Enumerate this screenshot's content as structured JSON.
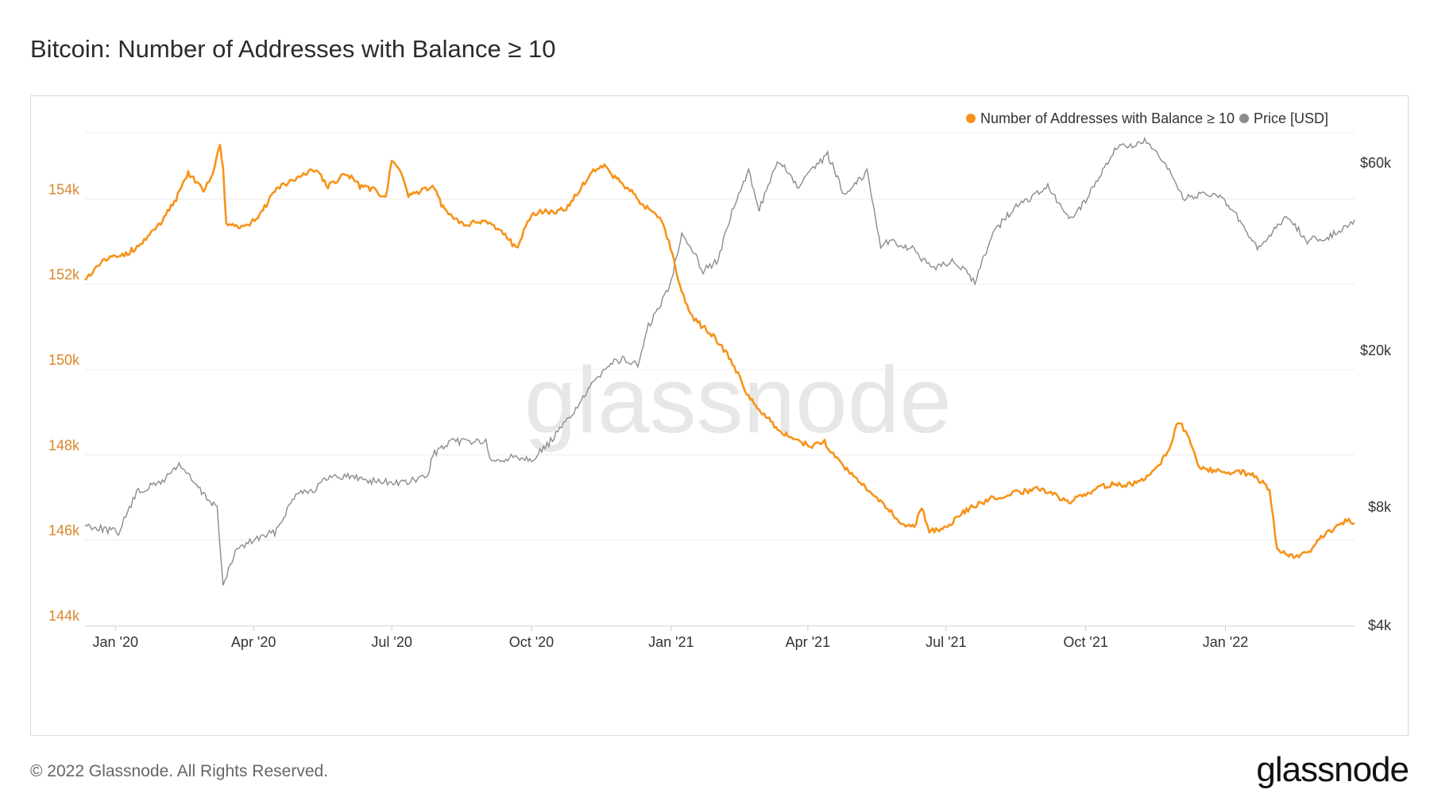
{
  "title": "Bitcoin: Number of Addresses with Balance ≥ 10",
  "footer": "© 2022 Glassnode. All Rights Reserved.",
  "brand": "glassnode",
  "watermark": "glassnode",
  "colors": {
    "addresses": "#f7931a",
    "price": "#8c8c8c",
    "grid": "#ececec",
    "left_tick": "#d9862b",
    "right_tick": "#333333"
  },
  "chart_data": {
    "type": "line",
    "title": "Bitcoin: Number of Addresses with Balance ≥ 10",
    "legend_placement": "top-right",
    "grid": true,
    "x_ticks": [
      "Jan '20",
      "Apr '20",
      "Jul '20",
      "Oct '20",
      "Jan '21",
      "Apr '21",
      "Jul '21",
      "Oct '21",
      "Jan '22"
    ],
    "x_tick_dates": [
      "2020-01-01",
      "2020-04-01",
      "2020-07-01",
      "2020-10-01",
      "2021-01-01",
      "2021-04-01",
      "2021-07-01",
      "2021-10-01",
      "2022-01-01"
    ],
    "x_range": [
      "2019-12-12",
      "2022-03-27"
    ],
    "y_left": {
      "ticks": [
        "144k",
        "146k",
        "148k",
        "150k",
        "152k",
        "154k"
      ],
      "tick_values": [
        144000,
        146000,
        148000,
        150000,
        152000,
        154000
      ],
      "range": [
        144000,
        156000
      ]
    },
    "y_right": {
      "scale": "log",
      "ticks": [
        "$4k",
        "$8k",
        "$20k",
        "$60k"
      ],
      "tick_values": [
        4000,
        8000,
        20000,
        60000
      ],
      "range": [
        4000,
        80000
      ]
    },
    "series": [
      {
        "name": "Number of Addresses with Balance ≥ 10",
        "axis": "left",
        "points": [
          [
            "2019-12-12",
            152100
          ],
          [
            "2019-12-25",
            152600
          ],
          [
            "2020-01-08",
            152700
          ],
          [
            "2020-01-20",
            153000
          ],
          [
            "2020-02-01",
            153500
          ],
          [
            "2020-02-10",
            154000
          ],
          [
            "2020-02-18",
            154600
          ],
          [
            "2020-02-28",
            154200
          ],
          [
            "2020-03-05",
            154600
          ],
          [
            "2020-03-10",
            155300
          ],
          [
            "2020-03-12",
            154700
          ],
          [
            "2020-03-14",
            153400
          ],
          [
            "2020-03-25",
            153300
          ],
          [
            "2020-04-05",
            153600
          ],
          [
            "2020-04-15",
            154200
          ],
          [
            "2020-04-25",
            154400
          ],
          [
            "2020-05-05",
            154600
          ],
          [
            "2020-05-12",
            154700
          ],
          [
            "2020-05-20",
            154300
          ],
          [
            "2020-06-01",
            154600
          ],
          [
            "2020-06-10",
            154300
          ],
          [
            "2020-06-20",
            154200
          ],
          [
            "2020-06-27",
            154000
          ],
          [
            "2020-07-01",
            154900
          ],
          [
            "2020-07-05",
            154800
          ],
          [
            "2020-07-12",
            154100
          ],
          [
            "2020-07-22",
            154200
          ],
          [
            "2020-07-28",
            154300
          ],
          [
            "2020-08-05",
            153700
          ],
          [
            "2020-08-12",
            153500
          ],
          [
            "2020-08-20",
            153400
          ],
          [
            "2020-09-01",
            153500
          ],
          [
            "2020-09-05",
            153400
          ],
          [
            "2020-09-10",
            153300
          ],
          [
            "2020-09-22",
            152800
          ],
          [
            "2020-09-26",
            153300
          ],
          [
            "2020-10-01",
            153600
          ],
          [
            "2020-10-08",
            153700
          ],
          [
            "2020-10-15",
            153700
          ],
          [
            "2020-10-25",
            153800
          ],
          [
            "2020-11-05",
            154400
          ],
          [
            "2020-11-12",
            154700
          ],
          [
            "2020-11-18",
            154800
          ],
          [
            "2020-11-25",
            154500
          ],
          [
            "2020-12-05",
            154200
          ],
          [
            "2020-12-15",
            153800
          ],
          [
            "2020-12-22",
            153700
          ],
          [
            "2020-12-28",
            153300
          ],
          [
            "2021-01-03",
            152500
          ],
          [
            "2021-01-08",
            151800
          ],
          [
            "2021-01-15",
            151200
          ],
          [
            "2021-01-22",
            151000
          ],
          [
            "2021-01-31",
            150700
          ],
          [
            "2021-02-08",
            150300
          ],
          [
            "2021-02-15",
            149800
          ],
          [
            "2021-02-22",
            149300
          ],
          [
            "2021-03-01",
            149000
          ],
          [
            "2021-03-10",
            148700
          ],
          [
            "2021-03-20",
            148400
          ],
          [
            "2021-03-28",
            148300
          ],
          [
            "2021-04-05",
            148200
          ],
          [
            "2021-04-12",
            148300
          ],
          [
            "2021-04-20",
            147900
          ],
          [
            "2021-05-01",
            147500
          ],
          [
            "2021-05-10",
            147200
          ],
          [
            "2021-05-20",
            146900
          ],
          [
            "2021-06-01",
            146400
          ],
          [
            "2021-06-10",
            146300
          ],
          [
            "2021-06-15",
            146800
          ],
          [
            "2021-06-20",
            146200
          ],
          [
            "2021-07-01",
            146300
          ],
          [
            "2021-07-10",
            146600
          ],
          [
            "2021-07-20",
            146800
          ],
          [
            "2021-08-01",
            147000
          ],
          [
            "2021-08-15",
            147100
          ],
          [
            "2021-09-01",
            147200
          ],
          [
            "2021-09-08",
            147100
          ],
          [
            "2021-09-20",
            146900
          ],
          [
            "2021-10-01",
            147100
          ],
          [
            "2021-10-15",
            147300
          ],
          [
            "2021-11-01",
            147300
          ],
          [
            "2021-11-15",
            147600
          ],
          [
            "2021-11-25",
            148100
          ],
          [
            "2021-12-01",
            148800
          ],
          [
            "2021-12-08",
            148400
          ],
          [
            "2021-12-15",
            147700
          ],
          [
            "2021-12-28",
            147600
          ],
          [
            "2022-01-10",
            147600
          ],
          [
            "2022-01-20",
            147500
          ],
          [
            "2022-01-30",
            147200
          ],
          [
            "2022-02-04",
            145800
          ],
          [
            "2022-02-15",
            145600
          ],
          [
            "2022-02-25",
            145700
          ],
          [
            "2022-03-05",
            146100
          ],
          [
            "2022-03-15",
            146300
          ],
          [
            "2022-03-22",
            146500
          ],
          [
            "2022-03-27",
            146400
          ]
        ]
      },
      {
        "name": "Price [USD]",
        "axis": "right",
        "points": [
          [
            "2019-12-12",
            7200
          ],
          [
            "2019-12-20",
            7100
          ],
          [
            "2020-01-03",
            6900
          ],
          [
            "2020-01-15",
            8700
          ],
          [
            "2020-02-01",
            9300
          ],
          [
            "2020-02-12",
            10300
          ],
          [
            "2020-02-28",
            8600
          ],
          [
            "2020-03-08",
            8000
          ],
          [
            "2020-03-12",
            5000
          ],
          [
            "2020-03-20",
            6200
          ],
          [
            "2020-04-01",
            6600
          ],
          [
            "2020-04-15",
            6900
          ],
          [
            "2020-04-30",
            8800
          ],
          [
            "2020-05-10",
            8800
          ],
          [
            "2020-05-20",
            9500
          ],
          [
            "2020-06-01",
            9600
          ],
          [
            "2020-06-20",
            9300
          ],
          [
            "2020-07-10",
            9200
          ],
          [
            "2020-07-25",
            9600
          ],
          [
            "2020-07-28",
            10900
          ],
          [
            "2020-08-10",
            11700
          ],
          [
            "2020-08-20",
            11800
          ],
          [
            "2020-09-01",
            11700
          ],
          [
            "2020-09-05",
            10300
          ],
          [
            "2020-09-20",
            10800
          ],
          [
            "2020-10-01",
            10600
          ],
          [
            "2020-10-10",
            11300
          ],
          [
            "2020-10-22",
            12900
          ],
          [
            "2020-11-05",
            15300
          ],
          [
            "2020-11-20",
            18500
          ],
          [
            "2020-12-01",
            19000
          ],
          [
            "2020-12-10",
            18300
          ],
          [
            "2020-12-17",
            23000
          ],
          [
            "2020-12-31",
            29000
          ],
          [
            "2021-01-08",
            40000
          ],
          [
            "2021-01-15",
            36000
          ],
          [
            "2021-01-22",
            32000
          ],
          [
            "2021-02-01",
            34000
          ],
          [
            "2021-02-10",
            45000
          ],
          [
            "2021-02-21",
            57000
          ],
          [
            "2021-02-28",
            46000
          ],
          [
            "2021-03-13",
            61000
          ],
          [
            "2021-03-25",
            52000
          ],
          [
            "2021-04-14",
            63000
          ],
          [
            "2021-04-25",
            50000
          ],
          [
            "2021-05-10",
            57000
          ],
          [
            "2021-05-19",
            37000
          ],
          [
            "2021-05-25",
            38000
          ],
          [
            "2021-06-10",
            36000
          ],
          [
            "2021-06-22",
            32000
          ],
          [
            "2021-07-05",
            34000
          ],
          [
            "2021-07-20",
            30000
          ],
          [
            "2021-08-01",
            40000
          ],
          [
            "2021-08-15",
            46000
          ],
          [
            "2021-09-06",
            52000
          ],
          [
            "2021-09-20",
            43000
          ],
          [
            "2021-10-01",
            48000
          ],
          [
            "2021-10-20",
            65000
          ],
          [
            "2021-11-10",
            68000
          ],
          [
            "2021-11-25",
            57000
          ],
          [
            "2021-12-04",
            49000
          ],
          [
            "2021-12-25",
            50000
          ],
          [
            "2022-01-05",
            46000
          ],
          [
            "2022-01-22",
            36000
          ],
          [
            "2022-02-10",
            44000
          ],
          [
            "2022-02-24",
            38000
          ],
          [
            "2022-03-10",
            39000
          ],
          [
            "2022-03-20",
            41000
          ],
          [
            "2022-03-27",
            43000
          ]
        ]
      }
    ]
  }
}
